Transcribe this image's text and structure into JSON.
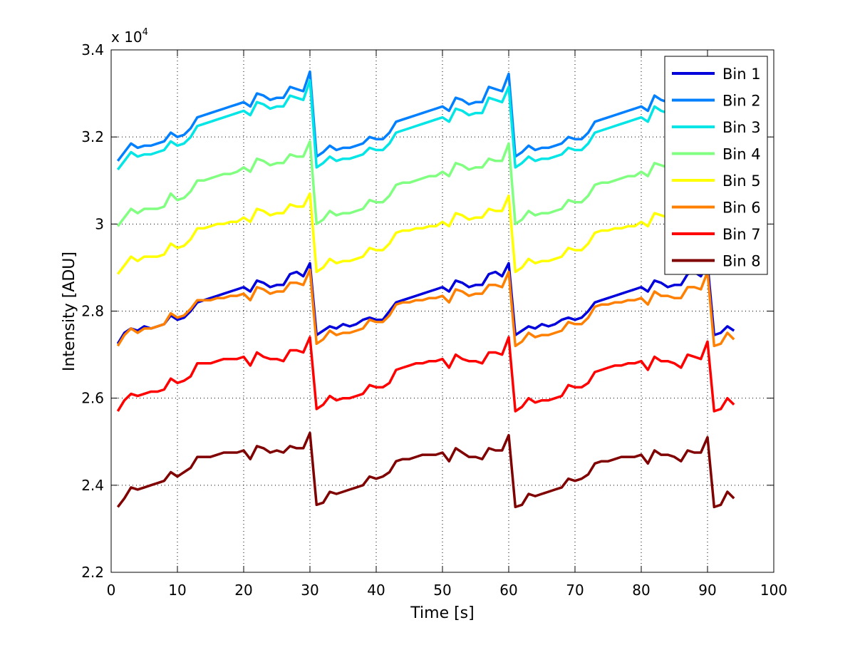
{
  "chart_data": {
    "type": "line",
    "title": "",
    "xlabel": "Time [s]",
    "ylabel": "Intensity [ADU]",
    "exponent_label": "x 10",
    "exponent_power": "4",
    "xlim": [
      0,
      100
    ],
    "ylim": [
      22000,
      34000
    ],
    "xticks": [
      0,
      10,
      20,
      30,
      40,
      50,
      60,
      70,
      80,
      90,
      100
    ],
    "xtick_labels": [
      "0",
      "10",
      "20",
      "30",
      "40",
      "50",
      "60",
      "70",
      "80",
      "90",
      "100"
    ],
    "yticks": [
      22000,
      24000,
      26000,
      28000,
      30000,
      32000,
      34000
    ],
    "ytick_labels": [
      "2.2",
      "2.4",
      "2.6",
      "2.8",
      "3",
      "3.2",
      "3.4"
    ],
    "grid": true,
    "legend_position": "top-right",
    "x_start": 1,
    "x_step": 1,
    "series": [
      {
        "name": "Bin 1",
        "color": "#0000dd",
        "values": [
          27250,
          27500,
          27600,
          27550,
          27650,
          27600,
          27650,
          27700,
          27900,
          27800,
          27850,
          28000,
          28200,
          28250,
          28300,
          28350,
          28400,
          28450,
          28500,
          28550,
          28450,
          28700,
          28650,
          28550,
          28600,
          28600,
          28850,
          28900,
          28800,
          29100,
          27450,
          27550,
          27650,
          27600,
          27700,
          27650,
          27700,
          27800,
          27850,
          27800,
          27800,
          28000,
          28200,
          28250,
          28300,
          28350,
          28400,
          28450,
          28500,
          28550,
          28450,
          28700,
          28650,
          28550,
          28600,
          28600,
          28850,
          28900,
          28800,
          29100,
          27450,
          27550,
          27650,
          27600,
          27700,
          27650,
          27700,
          27800,
          27850,
          27800,
          27850,
          28000,
          28200,
          28250,
          28300,
          28350,
          28400,
          28450,
          28500,
          28550,
          28450,
          28700,
          28650,
          28550,
          28600,
          28600,
          28850,
          28900,
          28800,
          29100,
          27450,
          27500,
          27650,
          27550
        ]
      },
      {
        "name": "Bin 2",
        "color": "#0080ff",
        "values": [
          31450,
          31650,
          31850,
          31750,
          31800,
          31800,
          31850,
          31900,
          32100,
          32000,
          32050,
          32200,
          32450,
          32500,
          32550,
          32600,
          32650,
          32700,
          32750,
          32800,
          32700,
          33000,
          32950,
          32850,
          32900,
          32900,
          33150,
          33100,
          33050,
          33500,
          31550,
          31650,
          31800,
          31700,
          31750,
          31750,
          31800,
          31850,
          32000,
          31950,
          31950,
          32100,
          32350,
          32400,
          32450,
          32500,
          32550,
          32600,
          32650,
          32700,
          32600,
          32900,
          32850,
          32750,
          32800,
          32800,
          33150,
          33100,
          33050,
          33450,
          31550,
          31650,
          31800,
          31700,
          31750,
          31750,
          31800,
          31850,
          32000,
          31950,
          31950,
          32100,
          32350,
          32400,
          32450,
          32500,
          32550,
          32600,
          32650,
          32700,
          32600,
          32950,
          32850,
          32800
        ]
      },
      {
        "name": "Bin 3",
        "color": "#00e5e5",
        "values": [
          31250,
          31450,
          31650,
          31550,
          31600,
          31600,
          31650,
          31700,
          31900,
          31800,
          31850,
          32000,
          32250,
          32300,
          32350,
          32400,
          32450,
          32500,
          32550,
          32600,
          32500,
          32800,
          32750,
          32650,
          32700,
          32700,
          32950,
          32900,
          32850,
          33300,
          31300,
          31400,
          31550,
          31450,
          31500,
          31500,
          31550,
          31600,
          31750,
          31700,
          31700,
          31850,
          32100,
          32150,
          32200,
          32250,
          32300,
          32350,
          32400,
          32450,
          32350,
          32650,
          32600,
          32500,
          32550,
          32550,
          32900,
          32850,
          32800,
          33150,
          31300,
          31400,
          31550,
          31450,
          31500,
          31500,
          31550,
          31600,
          31750,
          31700,
          31700,
          31850,
          32100,
          32150,
          32200,
          32250,
          32300,
          32350,
          32400,
          32450,
          32350,
          32700,
          32600,
          32550
        ]
      },
      {
        "name": "Bin 4",
        "color": "#80ff80",
        "values": [
          29950,
          30150,
          30350,
          30250,
          30350,
          30350,
          30350,
          30400,
          30700,
          30550,
          30600,
          30750,
          31000,
          31000,
          31050,
          31100,
          31150,
          31150,
          31200,
          31300,
          31200,
          31500,
          31450,
          31350,
          31400,
          31400,
          31600,
          31550,
          31550,
          31900,
          30000,
          30100,
          30300,
          30200,
          30250,
          30250,
          30300,
          30350,
          30550,
          30500,
          30500,
          30650,
          30900,
          30950,
          30950,
          31000,
          31050,
          31100,
          31100,
          31200,
          31100,
          31400,
          31350,
          31250,
          31300,
          31300,
          31500,
          31450,
          31450,
          31850,
          30000,
          30100,
          30300,
          30200,
          30250,
          30250,
          30300,
          30350,
          30550,
          30500,
          30500,
          30650,
          30900,
          30950,
          30950,
          31000,
          31050,
          31100,
          31100,
          31200,
          31100,
          31400,
          31350,
          31300
        ]
      },
      {
        "name": "Bin 5",
        "color": "#ffff00",
        "values": [
          28850,
          29050,
          29250,
          29150,
          29250,
          29250,
          29250,
          29300,
          29550,
          29450,
          29500,
          29650,
          29900,
          29900,
          29950,
          30000,
          30000,
          30050,
          30050,
          30150,
          30050,
          30350,
          30300,
          30200,
          30250,
          30250,
          30450,
          30400,
          30400,
          30700,
          28900,
          29000,
          29200,
          29100,
          29150,
          29150,
          29200,
          29250,
          29450,
          29400,
          29400,
          29550,
          29800,
          29850,
          29850,
          29900,
          29900,
          29950,
          29950,
          30050,
          29950,
          30250,
          30200,
          30100,
          30150,
          30150,
          30350,
          30300,
          30300,
          30650,
          28900,
          29000,
          29200,
          29100,
          29150,
          29150,
          29200,
          29250,
          29450,
          29400,
          29400,
          29550,
          29800,
          29850,
          29850,
          29900,
          29900,
          29950,
          29950,
          30050,
          29950,
          30250,
          30200,
          30150
        ]
      },
      {
        "name": "Bin 6",
        "color": "#ff8000",
        "values": [
          27200,
          27450,
          27600,
          27500,
          27600,
          27600,
          27650,
          27700,
          27950,
          27850,
          27900,
          28050,
          28250,
          28250,
          28250,
          28300,
          28300,
          28350,
          28350,
          28400,
          28250,
          28550,
          28500,
          28400,
          28450,
          28450,
          28650,
          28650,
          28600,
          28950,
          27250,
          27350,
          27550,
          27450,
          27500,
          27500,
          27550,
          27600,
          27800,
          27750,
          27750,
          27900,
          28150,
          28200,
          28200,
          28250,
          28250,
          28300,
          28300,
          28350,
          28200,
          28500,
          28450,
          28350,
          28400,
          28400,
          28600,
          28600,
          28550,
          28900,
          27200,
          27300,
          27500,
          27400,
          27450,
          27450,
          27500,
          27550,
          27750,
          27700,
          27700,
          27850,
          28100,
          28150,
          28150,
          28200,
          28200,
          28250,
          28250,
          28300,
          28150,
          28450,
          28350,
          28350,
          28300,
          28300,
          28550,
          28550,
          28500,
          28900,
          27200,
          27250,
          27500,
          27350
        ]
      },
      {
        "name": "Bin 7",
        "color": "#ff0000",
        "values": [
          25700,
          25950,
          26100,
          26050,
          26100,
          26150,
          26150,
          26200,
          26450,
          26350,
          26400,
          26500,
          26800,
          26800,
          26800,
          26850,
          26900,
          26900,
          26900,
          26950,
          26750,
          27050,
          26950,
          26900,
          26900,
          26850,
          27100,
          27100,
          27050,
          27400,
          25750,
          25850,
          26050,
          25950,
          26000,
          26000,
          26050,
          26100,
          26300,
          26250,
          26250,
          26350,
          26650,
          26700,
          26750,
          26800,
          26800,
          26850,
          26850,
          26900,
          26700,
          27000,
          26900,
          26850,
          26850,
          26800,
          27050,
          27050,
          27000,
          27400,
          25700,
          25800,
          26000,
          25900,
          25950,
          25950,
          26000,
          26050,
          26300,
          26250,
          26250,
          26350,
          26600,
          26650,
          26700,
          26750,
          26750,
          26800,
          26800,
          26850,
          26650,
          26950,
          26850,
          26850,
          26800,
          26700,
          27000,
          26950,
          26900,
          27300,
          25700,
          25750,
          26000,
          25850
        ]
      },
      {
        "name": "Bin 8",
        "color": "#800000",
        "values": [
          23500,
          23700,
          23950,
          23900,
          23950,
          24000,
          24050,
          24100,
          24300,
          24200,
          24300,
          24400,
          24650,
          24650,
          24650,
          24700,
          24750,
          24750,
          24750,
          24800,
          24600,
          24900,
          24850,
          24750,
          24800,
          24750,
          24900,
          24850,
          24850,
          25200,
          23550,
          23600,
          23850,
          23800,
          23850,
          23900,
          23950,
          24000,
          24200,
          24150,
          24200,
          24300,
          24550,
          24600,
          24600,
          24650,
          24700,
          24700,
          24700,
          24750,
          24550,
          24850,
          24750,
          24650,
          24650,
          24600,
          24850,
          24800,
          24800,
          25150,
          23500,
          23550,
          23800,
          23750,
          23800,
          23850,
          23900,
          23950,
          24150,
          24100,
          24150,
          24250,
          24500,
          24550,
          24550,
          24600,
          24650,
          24650,
          24650,
          24700,
          24500,
          24800,
          24700,
          24700,
          24650,
          24550,
          24800,
          24750,
          24750,
          25100,
          23500,
          23550,
          23850,
          23700
        ]
      }
    ]
  }
}
